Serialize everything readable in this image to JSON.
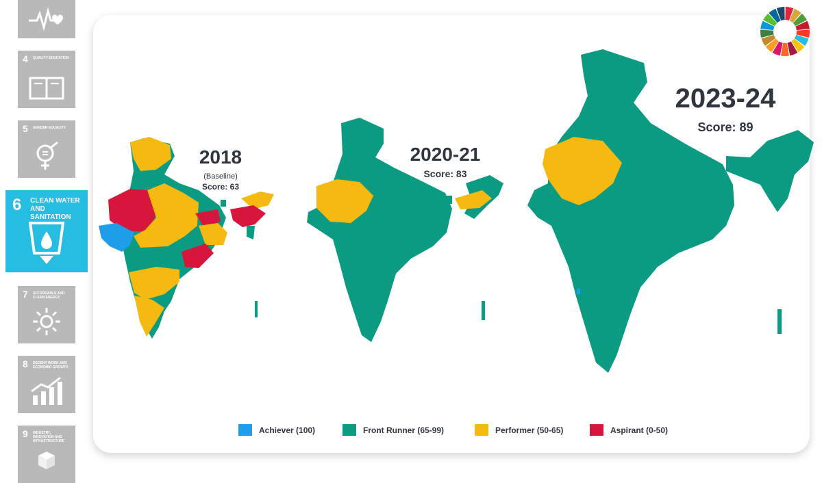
{
  "sidebar": {
    "tiles": [
      {
        "number": "",
        "title": "",
        "icon": "heartbeat-icon"
      },
      {
        "number": "4",
        "title": "QUALITY EDUCATION",
        "icon": "book-icon"
      },
      {
        "number": "5",
        "title": "GENDER EQUALITY",
        "icon": "gender-icon"
      },
      {
        "number": "6",
        "title": "CLEAN WATER AND SANITATION",
        "icon": "water-drop-glass-icon",
        "active": true
      },
      {
        "number": "7",
        "title": "AFFORDABLE AND CLEAN ENERGY",
        "icon": "sun-icon"
      },
      {
        "number": "8",
        "title": "DECENT WORK AND ECONOMIC GROWTH",
        "icon": "growth-chart-icon"
      },
      {
        "number": "9",
        "title": "INDUSTRY, INNOVATION AND INFRASTRUCTURE",
        "icon": "cubes-icon"
      }
    ]
  },
  "maps": [
    {
      "year": "2018",
      "note": "(Baseline)",
      "score": "Score: 63"
    },
    {
      "year": "2020-21",
      "note": "",
      "score": "Score: 83"
    },
    {
      "year": "2023-24",
      "note": "",
      "score": "Score: 89"
    }
  ],
  "legend": [
    {
      "label": "Achiever (100)",
      "color": "#1e9ee8"
    },
    {
      "label": "Front Runner (65-99)",
      "color": "#0b9a82"
    },
    {
      "label": "Performer (50-65)",
      "color": "#f5b90f"
    },
    {
      "label": "Aspirant (0-50)",
      "color": "#d6163a"
    }
  ],
  "colors": {
    "active_tile": "#26bde2",
    "inactive_tile": "#b9b9b9",
    "text": "#2f3640"
  },
  "logo": {
    "icon": "sdg-wheel-icon"
  }
}
